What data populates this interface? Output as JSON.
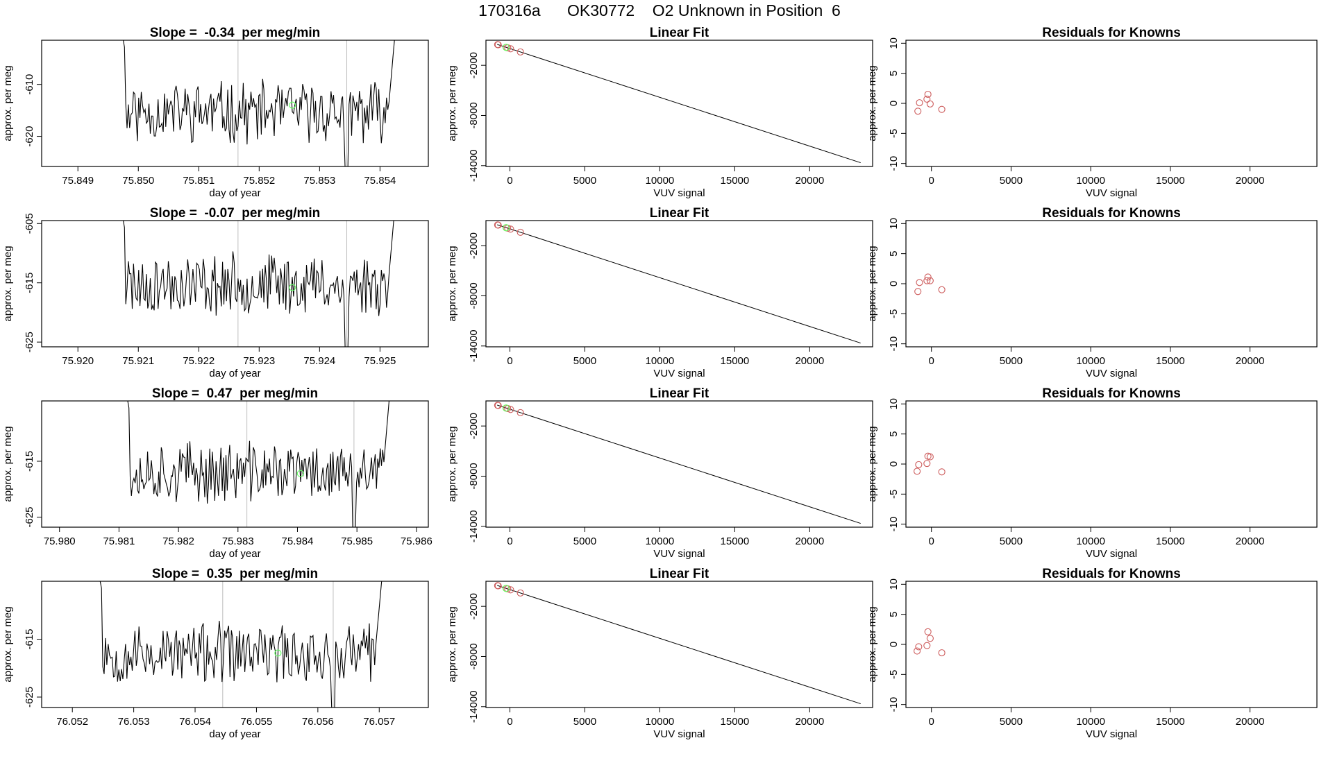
{
  "figure_title": "170316a      OK30772    O2 Unknown in Position  6",
  "colors": {
    "known_marker": "#cd5c5c",
    "unknown_marker": "#66ff66",
    "line": "#000000",
    "divider": "#bebebe"
  },
  "chart_data": [
    {
      "type": "line",
      "panel": "time-series",
      "row": 1,
      "title": "Slope =  -0.34  per meg/min",
      "xlabel": "day of year",
      "ylabel": "approx. per meg",
      "xlim": [
        75.8484,
        75.8548
      ],
      "ylim": [
        -625.8,
        -601.5
      ],
      "xticks": [
        75.849,
        75.85,
        75.851,
        75.852,
        75.853,
        75.854
      ],
      "xtick_labels": [
        "75.849",
        "75.850",
        "75.851",
        "75.852",
        "75.853",
        "75.854"
      ],
      "yticks": [
        -620,
        -610
      ],
      "ytick_labels": [
        "-620",
        "-610"
      ],
      "x_start": 75.8496,
      "x_end": 75.8543,
      "baseline": -615.3,
      "dividers": [
        75.85165,
        75.85345
      ],
      "unknown_point": {
        "x": 75.85255,
        "y": -614.0
      },
      "seed": 11
    },
    {
      "type": "scatter",
      "panel": "linear-fit",
      "row": 1,
      "title": "Linear Fit",
      "xlabel": "VUV signal",
      "ylabel": "approx. per meg",
      "xlim": [
        -1600,
        24200
      ],
      "ylim": [
        -14100,
        1000
      ],
      "xticks": [
        0,
        5000,
        10000,
        15000,
        20000
      ],
      "xtick_labels": [
        "0",
        "5000",
        "10000",
        "15000",
        "20000"
      ],
      "yticks": [
        -14000,
        -8000,
        -2000
      ],
      "ytick_labels": [
        "-14000",
        "-8000",
        "-2000"
      ],
      "fit_line": {
        "x": [
          -850,
          23400
        ],
        "y": [
          500,
          -13650
        ]
      },
      "knowns": {
        "x": [
          -820,
          -780,
          -240,
          -150,
          40,
          700
        ],
        "y": [
          480,
          455,
          140,
          90,
          -20,
          -400
        ]
      },
      "unknown": {
        "x": -260,
        "y": 150
      }
    },
    {
      "type": "scatter",
      "panel": "residuals",
      "row": 1,
      "title": "Residuals for Knowns",
      "xlabel": "VUV signal",
      "ylabel": "approx. per meg",
      "xlim": [
        -1600,
        24200
      ],
      "ylim": [
        -10.5,
        10.5
      ],
      "xticks": [
        0,
        5000,
        10000,
        15000,
        20000
      ],
      "xtick_labels": [
        "0",
        "5000",
        "10000",
        "15000",
        "20000"
      ],
      "yticks": [
        -10,
        -5,
        0,
        5,
        10
      ],
      "ytick_labels": [
        "-10",
        "-5",
        "0",
        "5",
        "10"
      ],
      "knowns": {
        "x": [
          -850,
          -750,
          -280,
          -220,
          -80,
          650
        ],
        "y": [
          -1.3,
          0.1,
          0.7,
          1.5,
          -0.1,
          -1.0
        ]
      }
    },
    {
      "type": "line",
      "panel": "time-series",
      "row": 2,
      "title": "Slope =  -0.07  per meg/min",
      "xlabel": "day of year",
      "ylabel": "approx. per meg",
      "xlim": [
        75.9194,
        75.9258
      ],
      "ylim": [
        -625.8,
        -604.5
      ],
      "xticks": [
        75.92,
        75.921,
        75.922,
        75.923,
        75.924,
        75.925
      ],
      "xtick_labels": [
        "75.920",
        "75.921",
        "75.922",
        "75.923",
        "75.924",
        "75.925"
      ],
      "yticks": [
        -625,
        -615,
        -605
      ],
      "ytick_labels": [
        "-625",
        "-615",
        "-605"
      ],
      "x_start": 75.9206,
      "x_end": 75.9253,
      "baseline": -615.2,
      "dividers": [
        75.92265,
        75.92445
      ],
      "unknown_point": {
        "x": 75.92355,
        "y": -615.8
      },
      "seed": 23
    },
    {
      "type": "scatter",
      "panel": "linear-fit",
      "row": 2,
      "title": "Linear Fit",
      "xlabel": "VUV signal",
      "ylabel": "approx. per meg",
      "xlim": [
        -1600,
        24200
      ],
      "ylim": [
        -14100,
        1000
      ],
      "xticks": [
        0,
        5000,
        10000,
        15000,
        20000
      ],
      "xtick_labels": [
        "0",
        "5000",
        "10000",
        "15000",
        "20000"
      ],
      "yticks": [
        -14000,
        -8000,
        -2000
      ],
      "ytick_labels": [
        "-14000",
        "-8000",
        "-2000"
      ],
      "fit_line": {
        "x": [
          -850,
          23400
        ],
        "y": [
          500,
          -13650
        ]
      },
      "knowns": {
        "x": [
          -820,
          -780,
          -240,
          -150,
          40,
          700
        ],
        "y": [
          480,
          455,
          140,
          90,
          -20,
          -400
        ]
      },
      "unknown": {
        "x": -260,
        "y": 150
      }
    },
    {
      "type": "scatter",
      "panel": "residuals",
      "row": 2,
      "title": "Residuals for Knowns",
      "xlabel": "VUV signal",
      "ylabel": "approx. per meg",
      "xlim": [
        -1600,
        24200
      ],
      "ylim": [
        -10.5,
        10.5
      ],
      "xticks": [
        0,
        5000,
        10000,
        15000,
        20000
      ],
      "xtick_labels": [
        "0",
        "5000",
        "10000",
        "15000",
        "20000"
      ],
      "yticks": [
        -10,
        -5,
        0,
        5,
        10
      ],
      "ytick_labels": [
        "-10",
        "-5",
        "0",
        "5",
        "10"
      ],
      "knowns": {
        "x": [
          -850,
          -750,
          -280,
          -220,
          -80,
          650
        ],
        "y": [
          -1.3,
          0.2,
          0.5,
          1.1,
          0.5,
          -1.0
        ]
      }
    },
    {
      "type": "line",
      "panel": "time-series",
      "row": 3,
      "title": "Slope =  0.47  per meg/min",
      "xlabel": "day of year",
      "ylabel": "approx. per meg",
      "xlim": [
        75.9797,
        75.9862
      ],
      "ylim": [
        -626.8,
        -604.2
      ],
      "xticks": [
        75.98,
        75.981,
        75.982,
        75.983,
        75.984,
        75.985,
        75.986
      ],
      "xtick_labels": [
        "75.980",
        "75.981",
        "75.982",
        "75.983",
        "75.984",
        "75.985",
        "75.986"
      ],
      "yticks": [
        -625,
        -615
      ],
      "ytick_labels": [
        "-625",
        "-615"
      ],
      "x_start": 75.981,
      "x_end": 75.9856,
      "baseline": -617.0,
      "dividers": [
        75.98315,
        75.98495
      ],
      "unknown_point": {
        "x": 75.98405,
        "y": -617.2
      },
      "seed": 37
    },
    {
      "type": "scatter",
      "panel": "linear-fit",
      "row": 3,
      "title": "Linear Fit",
      "xlabel": "VUV signal",
      "ylabel": "approx. per meg",
      "xlim": [
        -1600,
        24200
      ],
      "ylim": [
        -14100,
        1000
      ],
      "xticks": [
        0,
        5000,
        10000,
        15000,
        20000
      ],
      "xtick_labels": [
        "0",
        "5000",
        "10000",
        "15000",
        "20000"
      ],
      "yticks": [
        -14000,
        -8000,
        -2000
      ],
      "ytick_labels": [
        "-14000",
        "-8000",
        "-2000"
      ],
      "fit_line": {
        "x": [
          -850,
          23400
        ],
        "y": [
          500,
          -13650
        ]
      },
      "knowns": {
        "x": [
          -820,
          -780,
          -240,
          -150,
          40,
          700
        ],
        "y": [
          480,
          455,
          140,
          90,
          -20,
          -400
        ]
      },
      "unknown": {
        "x": -260,
        "y": 150
      }
    },
    {
      "type": "scatter",
      "panel": "residuals",
      "row": 3,
      "title": "Residuals for Knowns",
      "xlabel": "VUV signal",
      "ylabel": "approx. per meg",
      "xlim": [
        -1600,
        24200
      ],
      "ylim": [
        -10.5,
        10.5
      ],
      "xticks": [
        0,
        5000,
        10000,
        15000,
        20000
      ],
      "xtick_labels": [
        "0",
        "5000",
        "10000",
        "15000",
        "20000"
      ],
      "yticks": [
        -10,
        -5,
        0,
        5,
        10
      ],
      "ytick_labels": [
        "-10",
        "-5",
        "0",
        "5",
        "10"
      ],
      "knowns": {
        "x": [
          -900,
          -800,
          -280,
          -220,
          -80,
          650
        ],
        "y": [
          -1.2,
          -0.1,
          0.1,
          1.3,
          1.2,
          -1.3
        ]
      }
    },
    {
      "type": "line",
      "panel": "time-series",
      "row": 4,
      "title": "Slope =  0.35  per meg/min",
      "xlabel": "day of year",
      "ylabel": "approx. per meg",
      "xlim": [
        76.0515,
        76.0578
      ],
      "ylim": [
        -626.8,
        -605.0
      ],
      "xticks": [
        76.052,
        76.053,
        76.054,
        76.055,
        76.056,
        76.057
      ],
      "xtick_labels": [
        "76.052",
        "76.053",
        "76.054",
        "76.055",
        "76.056",
        "76.057"
      ],
      "yticks": [
        -625,
        -615
      ],
      "ytick_labels": [
        "-625",
        "-615"
      ],
      "x_start": 76.0523,
      "x_end": 76.0571,
      "baseline": -617.5,
      "dividers": [
        76.05445,
        76.05625
      ],
      "unknown_point": {
        "x": 76.05535,
        "y": -617.4
      },
      "seed": 53
    },
    {
      "type": "scatter",
      "panel": "linear-fit",
      "row": 4,
      "title": "Linear Fit",
      "xlabel": "VUV signal",
      "ylabel": "approx. per meg",
      "xlim": [
        -1600,
        24200
      ],
      "ylim": [
        -14100,
        1000
      ],
      "xticks": [
        0,
        5000,
        10000,
        15000,
        20000
      ],
      "xtick_labels": [
        "0",
        "5000",
        "10000",
        "15000",
        "20000"
      ],
      "yticks": [
        -14000,
        -8000,
        -2000
      ],
      "ytick_labels": [
        "-14000",
        "-8000",
        "-2000"
      ],
      "fit_line": {
        "x": [
          -850,
          23400
        ],
        "y": [
          500,
          -13650
        ]
      },
      "knowns": {
        "x": [
          -820,
          -780,
          -240,
          -150,
          40,
          700
        ],
        "y": [
          480,
          455,
          140,
          90,
          -20,
          -400
        ]
      },
      "unknown": {
        "x": -260,
        "y": 150
      }
    },
    {
      "type": "scatter",
      "panel": "residuals",
      "row": 4,
      "title": "Residuals for Knowns",
      "xlabel": "VUV signal",
      "ylabel": "approx. per meg",
      "xlim": [
        -1600,
        24200
      ],
      "ylim": [
        -10.5,
        10.5
      ],
      "xticks": [
        0,
        5000,
        10000,
        15000,
        20000
      ],
      "xtick_labels": [
        "0",
        "5000",
        "10000",
        "15000",
        "20000"
      ],
      "yticks": [
        -10,
        -5,
        0,
        5,
        10
      ],
      "ytick_labels": [
        "-10",
        "-5",
        "0",
        "5",
        "10"
      ],
      "knowns": {
        "x": [
          -900,
          -800,
          -280,
          -220,
          -80,
          650
        ],
        "y": [
          -1.1,
          -0.4,
          -0.2,
          2.1,
          1.0,
          -1.4
        ]
      }
    }
  ]
}
